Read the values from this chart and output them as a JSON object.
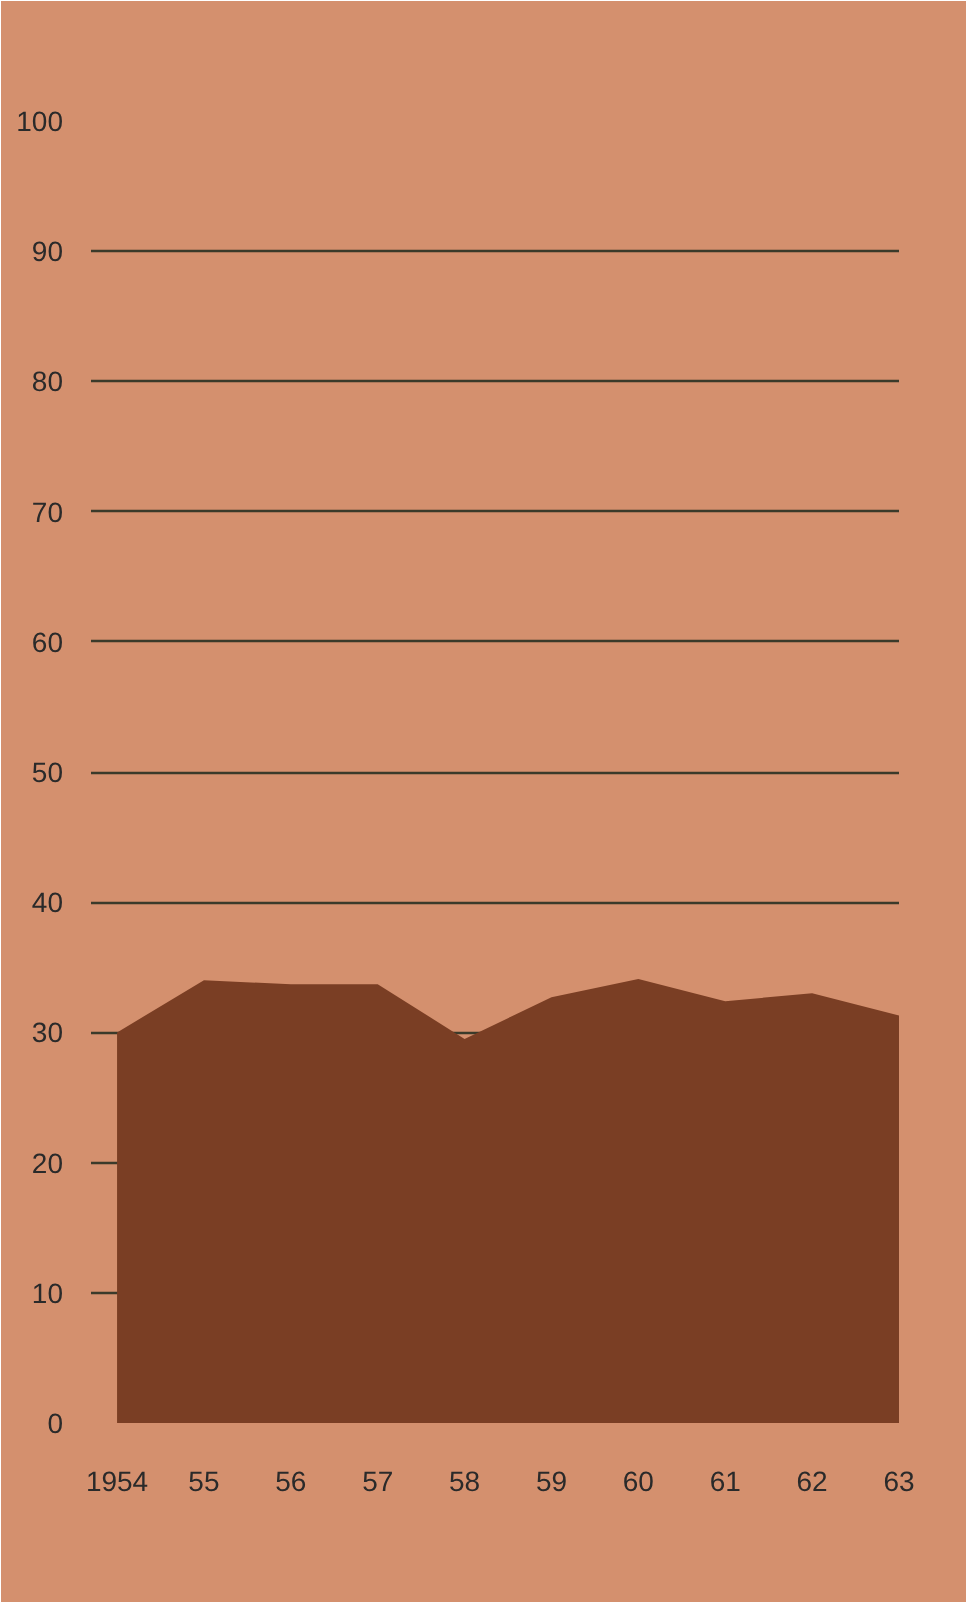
{
  "chart_data": {
    "type": "area",
    "x": [
      1954,
      1955,
      1956,
      1957,
      1958,
      1959,
      1960,
      1961,
      1962,
      1963
    ],
    "series": [
      {
        "color": "#7a3e24",
        "values": [
          30.0,
          34.0,
          33.7,
          33.7,
          29.5,
          32.7,
          34.1,
          32.4,
          33.0,
          31.3
        ]
      }
    ],
    "xlim": [
      1953.7,
      1963
    ],
    "xticks": [
      {
        "value": 1954,
        "label": "1954"
      },
      {
        "value": 1955,
        "label": "55"
      },
      {
        "value": 1956,
        "label": "56"
      },
      {
        "value": 1957,
        "label": "57"
      },
      {
        "value": 1958,
        "label": "58"
      },
      {
        "value": 1959,
        "label": "59"
      },
      {
        "value": 1960,
        "label": "60"
      },
      {
        "value": 1961,
        "label": "61"
      },
      {
        "value": 1962,
        "label": "62"
      },
      {
        "value": 1963,
        "label": "63"
      }
    ],
    "ylim": [
      0,
      100
    ],
    "yticks": [
      0,
      10,
      20,
      30,
      40,
      50,
      60,
      70,
      80,
      90,
      100
    ],
    "grid": "y"
  }
}
